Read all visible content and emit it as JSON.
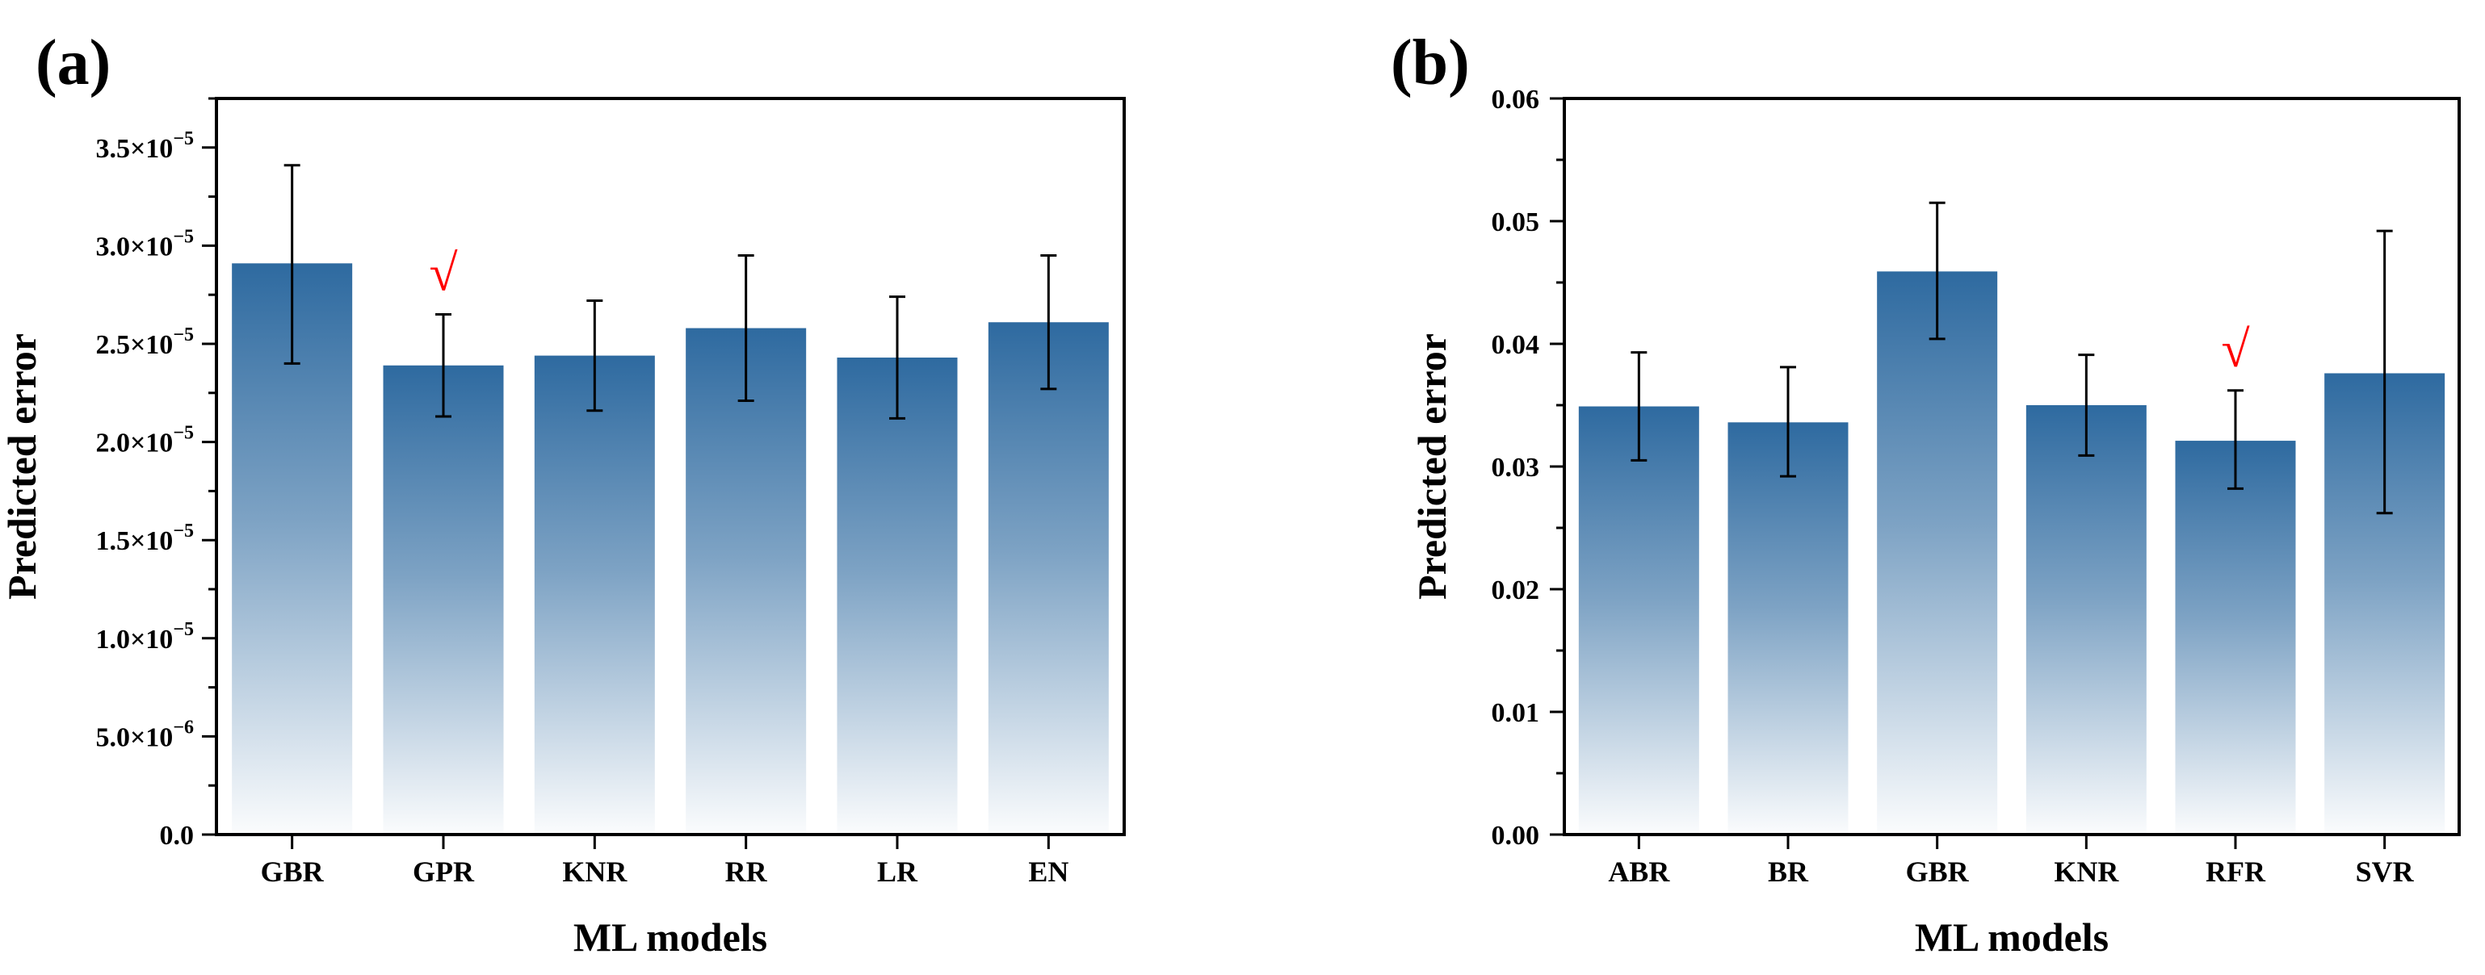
{
  "chart_data": [
    {
      "type": "bar",
      "panel_label": "(a)",
      "categories": [
        "GBR",
        "GPR",
        "KNR",
        "RR",
        "LR",
        "EN"
      ],
      "values": [
        2.91e-05,
        2.39e-05,
        2.44e-05,
        2.58e-05,
        2.43e-05,
        2.61e-05
      ],
      "error_low": [
        2.4e-05,
        2.13e-05,
        2.16e-05,
        2.21e-05,
        2.12e-05,
        2.27e-05
      ],
      "error_high": [
        3.41e-05,
        2.65e-05,
        2.72e-05,
        2.95e-05,
        2.74e-05,
        2.95e-05
      ],
      "xlabel": "ML models",
      "ylabel": "Predicted error",
      "ylim": [
        0,
        3.75e-05
      ],
      "yticks": [
        0,
        5e-06,
        1e-05,
        1.5e-05,
        2e-05,
        2.5e-05,
        3e-05,
        3.5e-05
      ],
      "ytick_labels": [
        {
          "mantissa": "0.0",
          "exponent": ""
        },
        {
          "mantissa": "5.0×10",
          "exponent": "−6"
        },
        {
          "mantissa": "1.0×10",
          "exponent": "−5"
        },
        {
          "mantissa": "1.5×10",
          "exponent": "−5"
        },
        {
          "mantissa": "2.0×10",
          "exponent": "−5"
        },
        {
          "mantissa": "2.5×10",
          "exponent": "−5"
        },
        {
          "mantissa": "3.0×10",
          "exponent": "−5"
        },
        {
          "mantissa": "3.5×10",
          "exponent": "−5"
        }
      ],
      "marked_category": "GPR",
      "mark_symbol": "√",
      "bar_color": "#2e6aa0",
      "mark_color": "#ff0000"
    },
    {
      "type": "bar",
      "panel_label": "(b)",
      "categories": [
        "ABR",
        "BR",
        "GBR",
        "KNR",
        "RFR",
        "SVR"
      ],
      "values": [
        0.0349,
        0.0336,
        0.0459,
        0.035,
        0.0321,
        0.0376
      ],
      "error_low": [
        0.0305,
        0.0292,
        0.0404,
        0.0309,
        0.0282,
        0.0262
      ],
      "error_high": [
        0.0393,
        0.0381,
        0.0515,
        0.0391,
        0.0362,
        0.0492
      ],
      "xlabel": "ML models",
      "ylabel": "Predicted error",
      "ylim": [
        0,
        0.06
      ],
      "yticks": [
        0,
        0.01,
        0.02,
        0.03,
        0.04,
        0.05,
        0.06
      ],
      "ytick_labels": [
        {
          "mantissa": "0.00",
          "exponent": ""
        },
        {
          "mantissa": "0.01",
          "exponent": ""
        },
        {
          "mantissa": "0.02",
          "exponent": ""
        },
        {
          "mantissa": "0.03",
          "exponent": ""
        },
        {
          "mantissa": "0.04",
          "exponent": ""
        },
        {
          "mantissa": "0.05",
          "exponent": ""
        },
        {
          "mantissa": "0.06",
          "exponent": ""
        }
      ],
      "marked_category": "RFR",
      "mark_symbol": "√",
      "bar_color": "#2e6aa0",
      "mark_color": "#ff0000"
    }
  ]
}
